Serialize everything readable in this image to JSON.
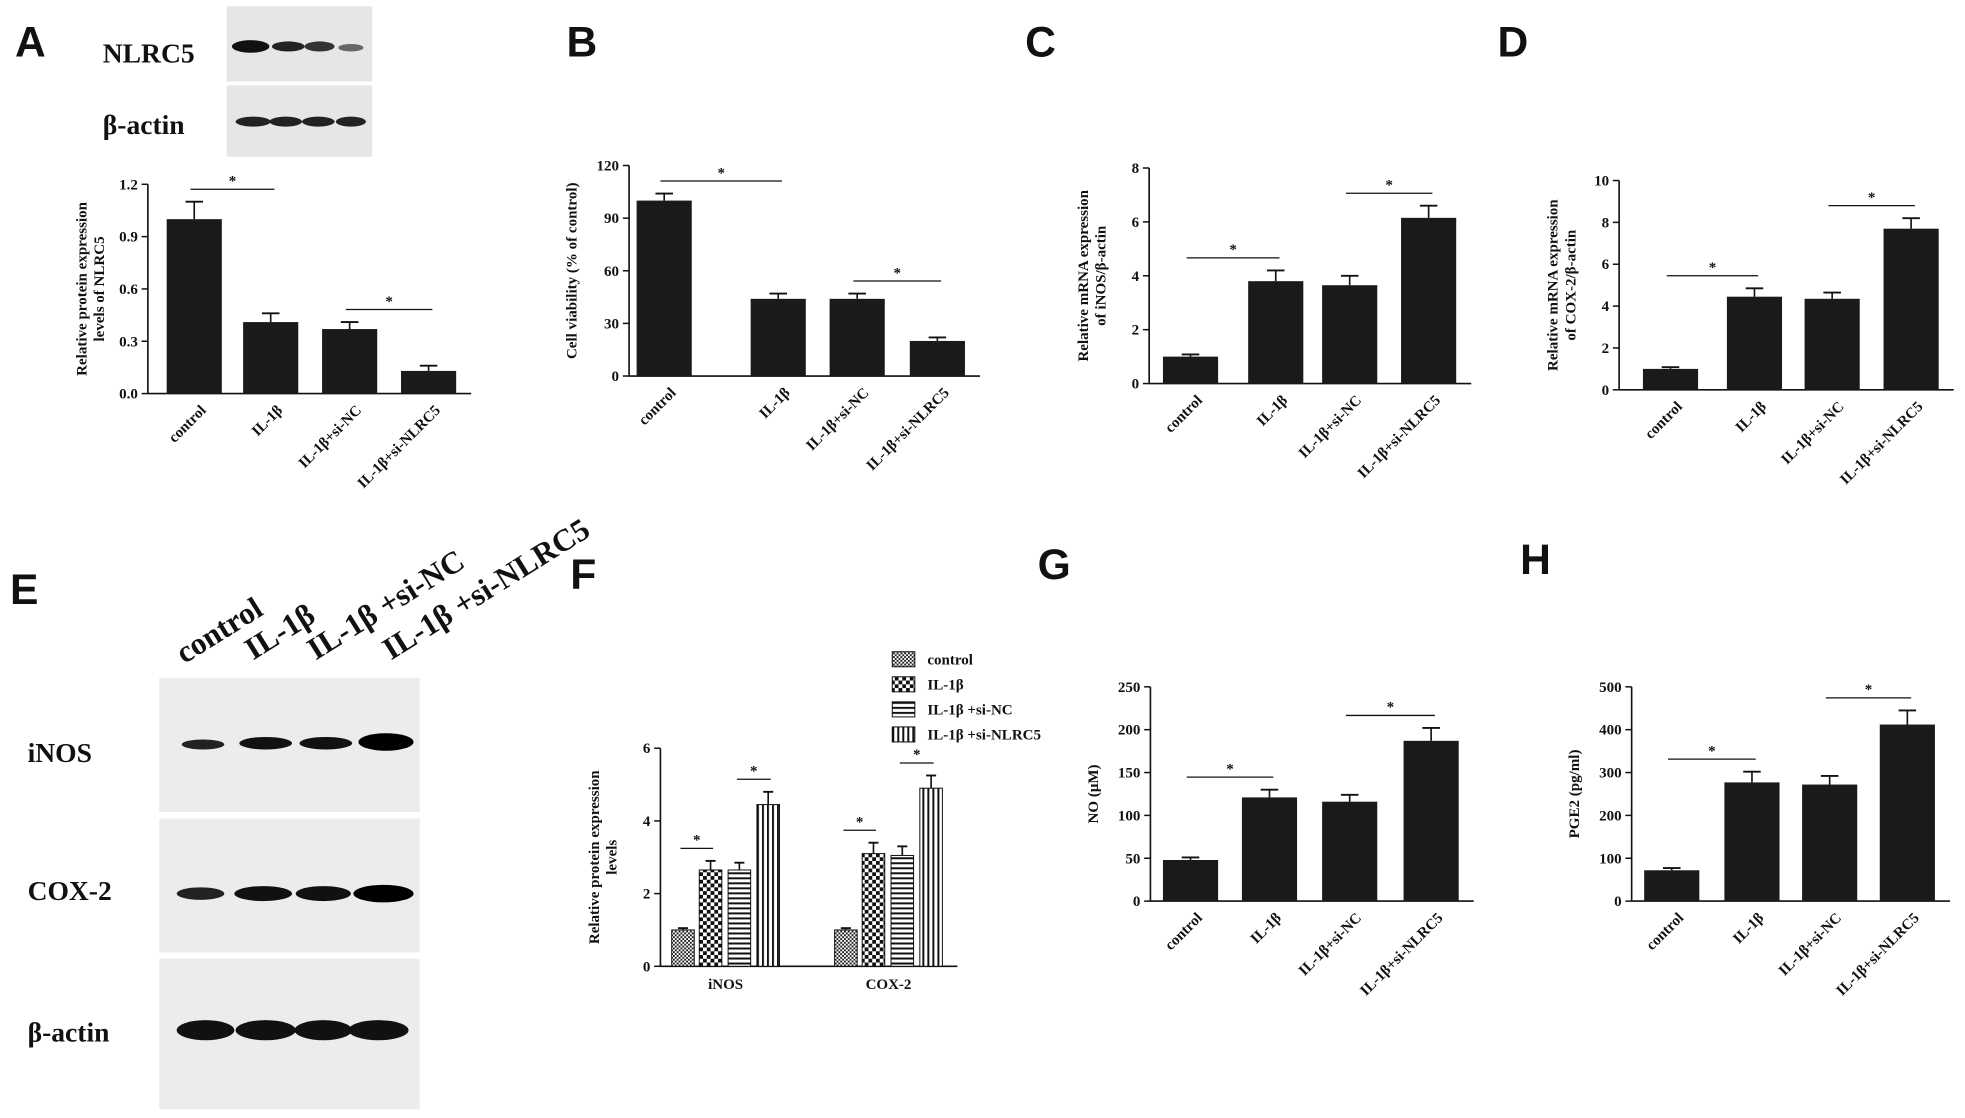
{
  "chart_data": [
    {
      "type": "bar",
      "panel": "A",
      "ylabel": [
        "Relative protein expression",
        "levels of NLRC5"
      ],
      "categories": [
        "control",
        "IL-1β",
        "IL-1β+si-NC",
        "IL-1β+si-NLRC5"
      ],
      "values": [
        1.0,
        0.41,
        0.37,
        0.13
      ],
      "errors": [
        0.1,
        0.05,
        0.04,
        0.03
      ],
      "color": "#1a1a1a",
      "ylim": [
        0,
        1.2
      ],
      "yticks": [
        {
          "value": 0,
          "label": "0.0"
        },
        0.3,
        0.6,
        0.9,
        1.2
      ],
      "significance": [
        {
          "pair": [
            "control",
            "IL-1β"
          ],
          "label": "*"
        },
        {
          "pair": [
            "IL-1β+si-NC",
            "IL-1β+si-NLRC5"
          ],
          "label": "*"
        }
      ]
    },
    {
      "type": "bar",
      "panel": "B",
      "ylabel": [
        "Cell viability (% of control)"
      ],
      "categories": [
        "control",
        "IL-1β",
        "IL-1β+si-NC",
        "IL-1β+si-NLRC5"
      ],
      "values": [
        100,
        44,
        44,
        20
      ],
      "errors": [
        4,
        3,
        3,
        2
      ],
      "color": "#1a1a1a",
      "ylim": [
        0,
        120
      ],
      "yticks": [
        0,
        30,
        60,
        90,
        120
      ],
      "significance": [
        {
          "pair": [
            "control",
            "IL-1β"
          ],
          "label": "*"
        },
        {
          "pair": [
            "IL-1β+si-NC",
            "IL-1β+si-NLRC5"
          ],
          "label": "*"
        }
      ]
    },
    {
      "type": "bar",
      "panel": "C",
      "ylabel": [
        "Relative mRNA expression",
        "of iNOS/β-actin"
      ],
      "categories": [
        "control",
        "IL-1β",
        "IL-1β+si-NC",
        "IL-1β+si-NLRC5"
      ],
      "values": [
        1.0,
        3.8,
        3.65,
        6.15
      ],
      "errors": [
        0.08,
        0.4,
        0.35,
        0.45
      ],
      "color": "#1a1a1a",
      "ylim": [
        0,
        8
      ],
      "yticks": [
        0,
        2,
        4,
        6,
        8
      ],
      "significance": [
        {
          "pair": [
            "control",
            "IL-1β"
          ],
          "label": "*"
        },
        {
          "pair": [
            "IL-1β+si-NC",
            "IL-1β+si-NLRC5"
          ],
          "label": "*"
        }
      ]
    },
    {
      "type": "bar",
      "panel": "D",
      "ylabel": [
        "Relative mRNA expression",
        "of COX-2/β-actin"
      ],
      "categories": [
        "control",
        "IL-1β",
        "IL-1β+si-NC",
        "IL-1β+si-NLRC5"
      ],
      "values": [
        1.0,
        4.45,
        4.35,
        7.7
      ],
      "errors": [
        0.08,
        0.4,
        0.3,
        0.5
      ],
      "color": "#1a1a1a",
      "ylim": [
        0,
        10
      ],
      "yticks": [
        0,
        2,
        4,
        6,
        8,
        10
      ],
      "significance": [
        {
          "pair": [
            "control",
            "IL-1β"
          ],
          "label": "*"
        },
        {
          "pair": [
            "IL-1β+si-NC",
            "IL-1β+si-NLRC5"
          ],
          "label": "*"
        }
      ]
    },
    {
      "type": "grouped_bar",
      "panel": "F",
      "ylabel": [
        "Relative  protein expression",
        "levels"
      ],
      "categories": [
        "iNOS",
        "COX-2"
      ],
      "series": [
        {
          "name": "control",
          "pattern": "p-fine",
          "values": [
            1.0,
            1.0
          ],
          "errors": [
            0.05,
            0.05
          ]
        },
        {
          "name": "IL-1β",
          "pattern": "p-check",
          "values": [
            2.65,
            3.1
          ],
          "errors": [
            0.25,
            0.3
          ]
        },
        {
          "name": "IL-1β +si-NC",
          "pattern": "p-hstripe",
          "values": [
            2.65,
            3.05
          ],
          "errors": [
            0.2,
            0.25
          ]
        },
        {
          "name": "IL-1β +si-NLRC5",
          "pattern": "p-vstripe",
          "values": [
            4.45,
            4.9
          ],
          "errors": [
            0.35,
            0.35
          ]
        }
      ],
      "ylim": [
        0,
        6
      ],
      "yticks": [
        0,
        2,
        4,
        6
      ],
      "significance": [
        {
          "category": "iNOS",
          "pair": [
            "control",
            "IL-1β"
          ],
          "label": "*"
        },
        {
          "category": "iNOS",
          "pair": [
            "IL-1β +si-NC",
            "IL-1β +si-NLRC5"
          ],
          "label": "*"
        },
        {
          "category": "COX-2",
          "pair": [
            "control",
            "IL-1β"
          ],
          "label": "*"
        },
        {
          "category": "COX-2",
          "pair": [
            "IL-1β +si-NC",
            "IL-1β +si-NLRC5"
          ],
          "label": "*"
        }
      ]
    },
    {
      "type": "bar",
      "panel": "G",
      "ylabel": [
        "NO (μM)"
      ],
      "categories": [
        "control",
        "IL-1β",
        "IL-1β+si-NC",
        "IL-1β+si-NLRC5"
      ],
      "values": [
        48,
        121,
        116,
        187
      ],
      "errors": [
        3,
        9,
        8,
        15
      ],
      "color": "#1a1a1a",
      "ylim": [
        0,
        250
      ],
      "yticks": [
        0,
        50,
        100,
        150,
        200,
        250
      ],
      "significance": [
        {
          "pair": [
            "control",
            "IL-1β"
          ],
          "label": "*"
        },
        {
          "pair": [
            "IL-1β+si-NC",
            "IL-1β+si-NLRC5"
          ],
          "label": "*"
        }
      ]
    },
    {
      "type": "bar",
      "panel": "H",
      "ylabel": [
        "PGE2 (pg/ml)"
      ],
      "categories": [
        "control",
        "IL-1β",
        "IL-1β+si-NC",
        "IL-1β+si-NLRC5"
      ],
      "values": [
        72,
        277,
        272,
        412
      ],
      "errors": [
        5,
        25,
        20,
        33
      ],
      "color": "#1a1a1a",
      "ylim": [
        0,
        500
      ],
      "yticks": [
        0,
        100,
        200,
        300,
        400,
        500
      ],
      "significance": [
        {
          "pair": [
            "control",
            "IL-1β"
          ],
          "label": "*"
        },
        {
          "pair": [
            "IL-1β+si-NC",
            "IL-1β+si-NLRC5"
          ],
          "label": "*"
        }
      ]
    }
  ],
  "blots": {
    "A": {
      "rows": [
        "NLRC5",
        "β-actin"
      ]
    },
    "E": {
      "panel": "E",
      "columns": [
        "control",
        "IL-1β",
        "IL-1β +si-NC",
        "IL-1β +si-NLRC5"
      ],
      "rows": [
        "iNOS",
        "COX-2",
        "β-actin"
      ]
    }
  }
}
